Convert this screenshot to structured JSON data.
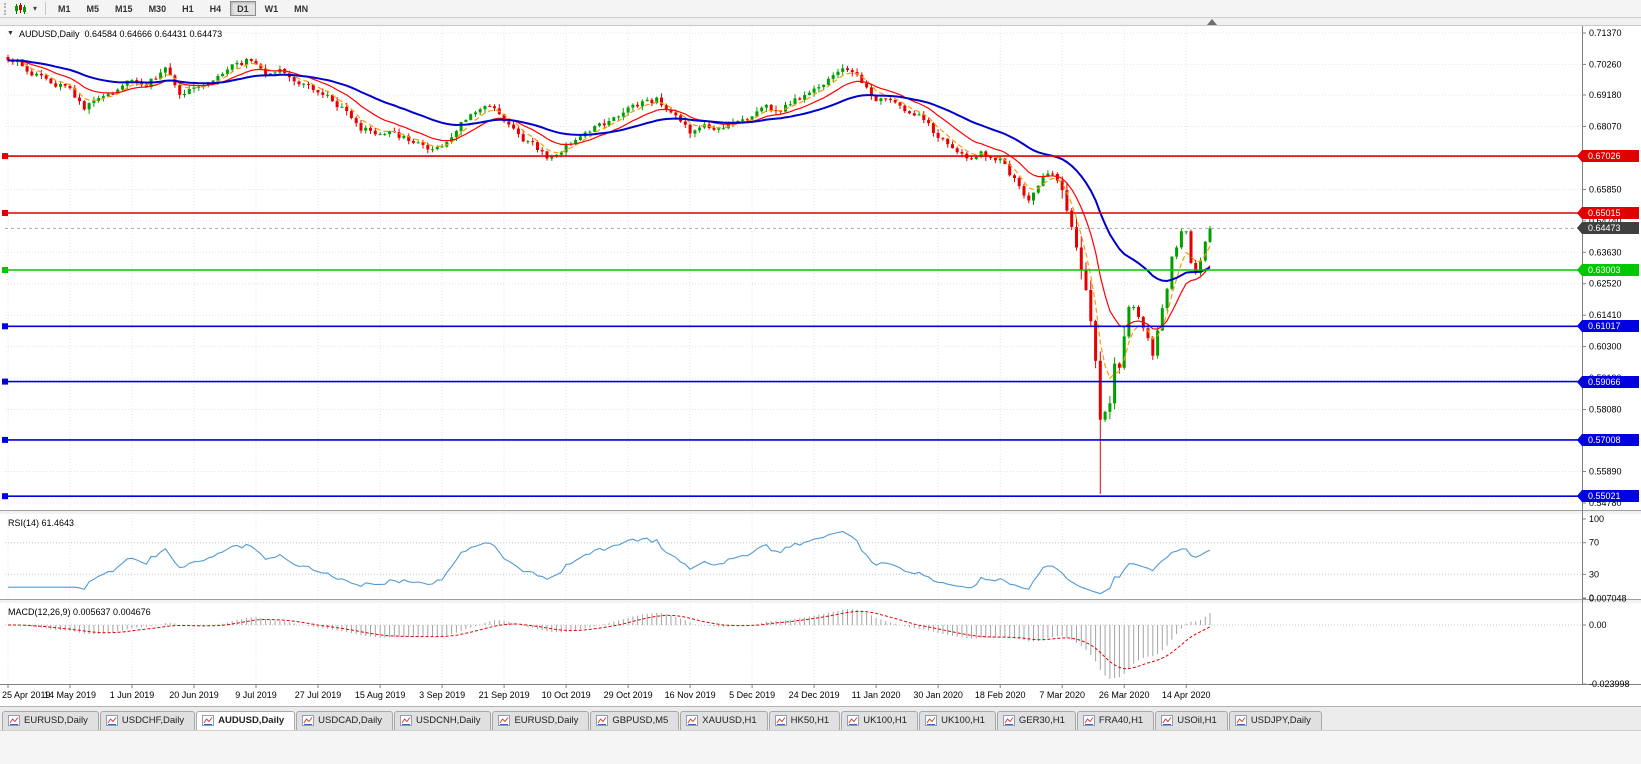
{
  "toolbar": {
    "timeframes": [
      "M1",
      "M5",
      "M15",
      "M30",
      "H1",
      "H4",
      "D1",
      "W1",
      "MN"
    ],
    "active_timeframe": "D1"
  },
  "price_panel": {
    "title": "AUDUSD,Daily",
    "ohlc": "0.64584 0.64666 0.64431 0.64473"
  },
  "chart_data": {
    "type": "candlestick",
    "symbol": "AUDUSD",
    "timeframe": "Daily",
    "ohlc_display": {
      "open": "0.64584",
      "high": "0.64666",
      "low": "0.64431",
      "close": "0.64473"
    },
    "num_bars": 253,
    "bars_per_label": 13,
    "x_labels": [
      "25 Apr 2019",
      "14 May 2019",
      "1 Jun 2019",
      "20 Jun 2019",
      "9 Jul 2019",
      "27 Jul 2019",
      "15 Aug 2019",
      "3 Sep 2019",
      "21 Sep 2019",
      "10 Oct 2019",
      "29 Oct 2019",
      "16 Nov 2019",
      "5 Dec 2019",
      "24 Dec 2019",
      "11 Jan 2020",
      "30 Jan 2020",
      "18 Feb 2020",
      "7 Mar 2020",
      "26 Mar 2020",
      "14 Apr 2020"
    ],
    "price_axis_ticks": [
      "0.71370",
      "0.70260",
      "0.69180",
      "0.68070",
      "0.66960",
      "0.65850",
      "0.64740",
      "0.63630",
      "0.62520",
      "0.61410",
      "0.60300",
      "0.59190",
      "0.58080",
      "0.56970",
      "0.55890",
      "0.54780"
    ],
    "price_keyframes": [
      [
        0,
        0.7035
      ],
      [
        2,
        0.7048
      ],
      [
        4,
        0.7
      ],
      [
        7,
        0.6985
      ],
      [
        10,
        0.6952
      ],
      [
        13,
        0.694
      ],
      [
        16,
        0.6876
      ],
      [
        19,
        0.69
      ],
      [
        22,
        0.6924
      ],
      [
        26,
        0.6972
      ],
      [
        29,
        0.6955
      ],
      [
        33,
        0.701
      ],
      [
        36,
        0.6924
      ],
      [
        39,
        0.6938
      ],
      [
        43,
        0.6978
      ],
      [
        47,
        0.7018
      ],
      [
        51,
        0.7042
      ],
      [
        54,
        0.6985
      ],
      [
        57,
        0.7002
      ],
      [
        60,
        0.696
      ],
      [
        65,
        0.6936
      ],
      [
        68,
        0.6898
      ],
      [
        71,
        0.6852
      ],
      [
        74,
        0.6802
      ],
      [
        77,
        0.6778
      ],
      [
        80,
        0.6792
      ],
      [
        83,
        0.6768
      ],
      [
        86,
        0.6742
      ],
      [
        89,
        0.672
      ],
      [
        91,
        0.6736
      ],
      [
        94,
        0.6798
      ],
      [
        98,
        0.6862
      ],
      [
        101,
        0.688
      ],
      [
        104,
        0.6826
      ],
      [
        107,
        0.6772
      ],
      [
        110,
        0.6742
      ],
      [
        113,
        0.67
      ],
      [
        116,
        0.6722
      ],
      [
        119,
        0.6758
      ],
      [
        122,
        0.6788
      ],
      [
        126,
        0.6832
      ],
      [
        130,
        0.687
      ],
      [
        133,
        0.6892
      ],
      [
        136,
        0.6902
      ],
      [
        139,
        0.6862
      ],
      [
        141,
        0.6822
      ],
      [
        143,
        0.6788
      ],
      [
        146,
        0.6812
      ],
      [
        149,
        0.6792
      ],
      [
        152,
        0.683
      ],
      [
        156,
        0.6842
      ],
      [
        159,
        0.6878
      ],
      [
        162,
        0.6864
      ],
      [
        165,
        0.69
      ],
      [
        169,
        0.6932
      ],
      [
        172,
        0.6978
      ],
      [
        175,
        0.7022
      ],
      [
        178,
        0.6992
      ],
      [
        182,
        0.6902
      ],
      [
        185,
        0.6892
      ],
      [
        188,
        0.6862
      ],
      [
        191,
        0.6846
      ],
      [
        195,
        0.6776
      ],
      [
        198,
        0.6722
      ],
      [
        201,
        0.6692
      ],
      [
        204,
        0.6716
      ],
      [
        208,
        0.6686
      ],
      [
        211,
        0.6622
      ],
      [
        214,
        0.6546
      ],
      [
        217,
        0.6624
      ],
      [
        219,
        0.6642
      ],
      [
        221,
        0.6582
      ],
      [
        222,
        0.651
      ],
      [
        223,
        0.6452
      ],
      [
        224,
        0.638
      ],
      [
        225,
        0.6302
      ],
      [
        226,
        0.623
      ],
      [
        227,
        0.612
      ],
      [
        228,
        0.598
      ],
      [
        229,
        0.5772
      ],
      [
        230,
        0.58
      ],
      [
        231,
        0.583
      ],
      [
        232,
        0.597
      ],
      [
        233,
        0.5955
      ],
      [
        234,
        0.6066
      ],
      [
        235,
        0.617
      ],
      [
        236,
        0.617
      ],
      [
        237,
        0.6135
      ],
      [
        238,
        0.6095
      ],
      [
        239,
        0.606
      ],
      [
        240,
        0.5998
      ],
      [
        241,
        0.6087
      ],
      [
        242,
        0.6166
      ],
      [
        243,
        0.6234
      ],
      [
        244,
        0.6348
      ],
      [
        245,
        0.638
      ],
      [
        246,
        0.6437
      ],
      [
        247,
        0.6437
      ],
      [
        248,
        0.6325
      ],
      [
        249,
        0.629
      ],
      [
        250,
        0.6334
      ],
      [
        251,
        0.64
      ],
      [
        252,
        0.64473
      ]
    ],
    "spike": {
      "index": 229,
      "low": 0.551
    },
    "hlines": [
      {
        "price": 0.67026,
        "label": "0.67026",
        "color": "#e00000"
      },
      {
        "price": 0.65015,
        "label": "0.65015",
        "color": "#e00000"
      },
      {
        "price": 0.63003,
        "label": "0.63003",
        "color": "#00c800"
      },
      {
        "price": 0.61017,
        "label": "0.61017",
        "color": "#0000e0"
      },
      {
        "price": 0.59066,
        "label": "0.59066",
        "color": "#0000e0"
      },
      {
        "price": 0.57008,
        "label": "0.57008",
        "color": "#0000e0"
      },
      {
        "price": 0.55021,
        "label": "0.55021",
        "color": "#0000e0"
      }
    ],
    "current_price": {
      "value": 0.64473,
      "label": "0.64473"
    },
    "colors": {
      "candle_up": "#00a000",
      "candle_down": "#e60000",
      "current_price_box": "#404040",
      "grid": "#e4e4e4"
    },
    "moving_averages": [
      {
        "period": 5,
        "color": "#ff9900",
        "dash": true,
        "width": 1.2
      },
      {
        "period": 13,
        "color": "#ff0000",
        "dash": false,
        "width": 1.2
      },
      {
        "period": 34,
        "color": "#0000cc",
        "dash": false,
        "width": 2
      }
    ],
    "rsi": {
      "label": "RSI(14) 61.4643",
      "period": 14,
      "value": "61.4643",
      "axis_labels": [
        "100",
        "70",
        "30",
        "0"
      ],
      "levels": [
        70,
        30
      ],
      "color": "#4f9bd6"
    },
    "macd": {
      "label": "MACD(12,26,9) 0.005637 0.004676",
      "fast": 12,
      "slow": 26,
      "signal_period": 9,
      "values_text": [
        "0.005637",
        "0.004676"
      ],
      "axis_labels": [
        "0.007048",
        "0.00",
        "-0.023998"
      ],
      "axis_values": [
        0.007048,
        0,
        -0.023998
      ],
      "histogram_color": "#a4a4a4",
      "signal_color": "#e00000"
    }
  },
  "tabs": {
    "items": [
      {
        "label": "EURUSD,Daily",
        "active": false
      },
      {
        "label": "USDCHF,Daily",
        "active": false
      },
      {
        "label": "AUDUSD,Daily",
        "active": true
      },
      {
        "label": "USDCAD,Daily",
        "active": false
      },
      {
        "label": "USDCNH,Daily",
        "active": false
      },
      {
        "label": "EURUSD,Daily",
        "active": false
      },
      {
        "label": "GBPUSD,M5",
        "active": false
      },
      {
        "label": "XAUUSD,H1",
        "active": false
      },
      {
        "label": "HK50,H1",
        "active": false
      },
      {
        "label": "UK100,H1",
        "active": false
      },
      {
        "label": "UK100,H1",
        "active": false
      },
      {
        "label": "GER30,H1",
        "active": false
      },
      {
        "label": "FRA40,H1",
        "active": false
      },
      {
        "label": "USOil,H1",
        "active": false
      },
      {
        "label": "USDJPY,Daily",
        "active": false
      }
    ]
  }
}
